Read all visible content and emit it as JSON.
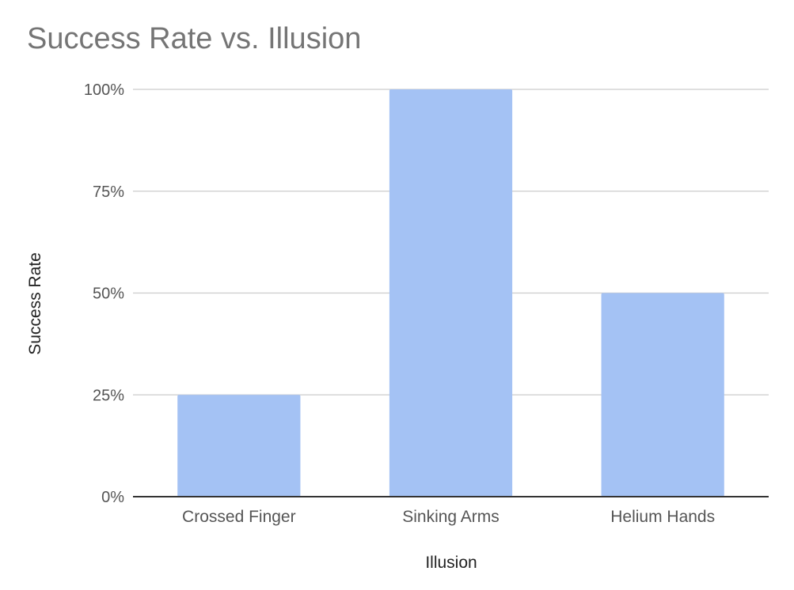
{
  "chart_data": {
    "type": "bar",
    "title": "Success Rate vs. Illusion",
    "xlabel": "Illusion",
    "ylabel": "Success Rate",
    "categories": [
      "Crossed Finger",
      "Sinking Arms",
      "Helium Hands"
    ],
    "values": [
      25,
      100,
      50
    ],
    "yticks": [
      "0%",
      "25%",
      "50%",
      "75%",
      "100%"
    ],
    "ylim": [
      0,
      100
    ],
    "grid": true,
    "legend": "none",
    "bar_color": "#a4c2f4",
    "grid_color": "#cccccc",
    "axis_color": "#333333",
    "tick_label_color": "#555555"
  }
}
